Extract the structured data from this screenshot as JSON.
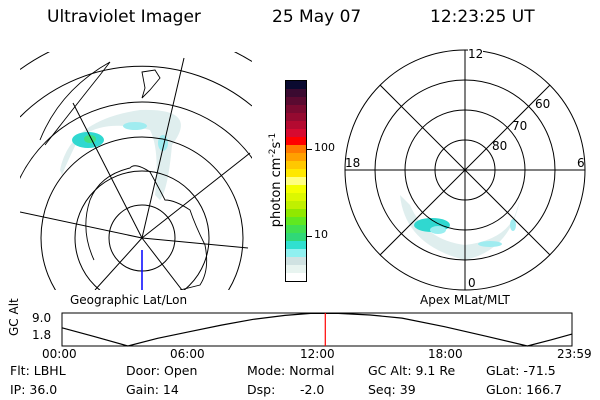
{
  "header": {
    "title": "Ultraviolet Imager",
    "date": "25 May 07",
    "time": "12:23:25 UT"
  },
  "left_map": {
    "label": "Geographic Lat/Lon"
  },
  "right_map": {
    "label": "Apex MLat/MLT",
    "mlt_labels": [
      "12",
      "18",
      "6",
      "0"
    ],
    "lat_labels": [
      "60",
      "70",
      "80"
    ]
  },
  "colorbar": {
    "unit_label": "photon cm",
    "unit_exp1": "-2",
    "unit_s": "s",
    "unit_exp2": "-1",
    "ticks": [
      "100",
      "10"
    ],
    "colors_top_to_bottom": [
      "#0a0a30",
      "#3a0a30",
      "#5a0a30",
      "#7a0a30",
      "#950a30",
      "#b40a30",
      "#d60a30",
      "#ff0000",
      "#ff7a00",
      "#ffa000",
      "#ffc800",
      "#ffe800",
      "#ffff80",
      "#f4ff00",
      "#dcf800",
      "#c0f000",
      "#90e800",
      "#60e820",
      "#40e050",
      "#30d878",
      "#30e0d0",
      "#90f0f0",
      "#d0e2e2",
      "#e8f4f0",
      "#ffffff"
    ]
  },
  "chart_data": {
    "type": "line",
    "ylabel": "GC Alt",
    "yticks": [
      "9.0",
      "1.8"
    ],
    "xticks": [
      "00:00",
      "06:00",
      "12:00",
      "18:00",
      "23:59"
    ],
    "x_unit": "hours UT",
    "xlim": [
      0,
      24
    ],
    "series": [
      {
        "x": [
          0,
          1.5,
          3.1,
          4.5,
          6,
          7.5,
          9,
          10.5,
          11.7,
          13,
          14.5,
          16,
          18,
          20,
          21.9,
          23,
          24
        ],
        "y": [
          5.7,
          3.5,
          1.0,
          3.0,
          4.7,
          6.4,
          7.9,
          8.9,
          9.4,
          9.4,
          9.0,
          8.2,
          6.0,
          3.5,
          1.0,
          2.6,
          4.1
        ]
      }
    ],
    "marker_time_hours": 12.39,
    "marker_color": "#ff0000"
  },
  "info": {
    "filter": "Flt: LBHL",
    "ip": "IP: 36.0",
    "door": "Door: Open",
    "gain": "Gain: 14",
    "mode": "Mode: Normal",
    "dsp_label": "Dsp:",
    "dsp_value": "-2.0",
    "gc_alt": "GC Alt: 9.1 Re",
    "seq": "Seq: 39",
    "glat": "GLat: -71.5",
    "glon": "GLon: 166.7"
  }
}
